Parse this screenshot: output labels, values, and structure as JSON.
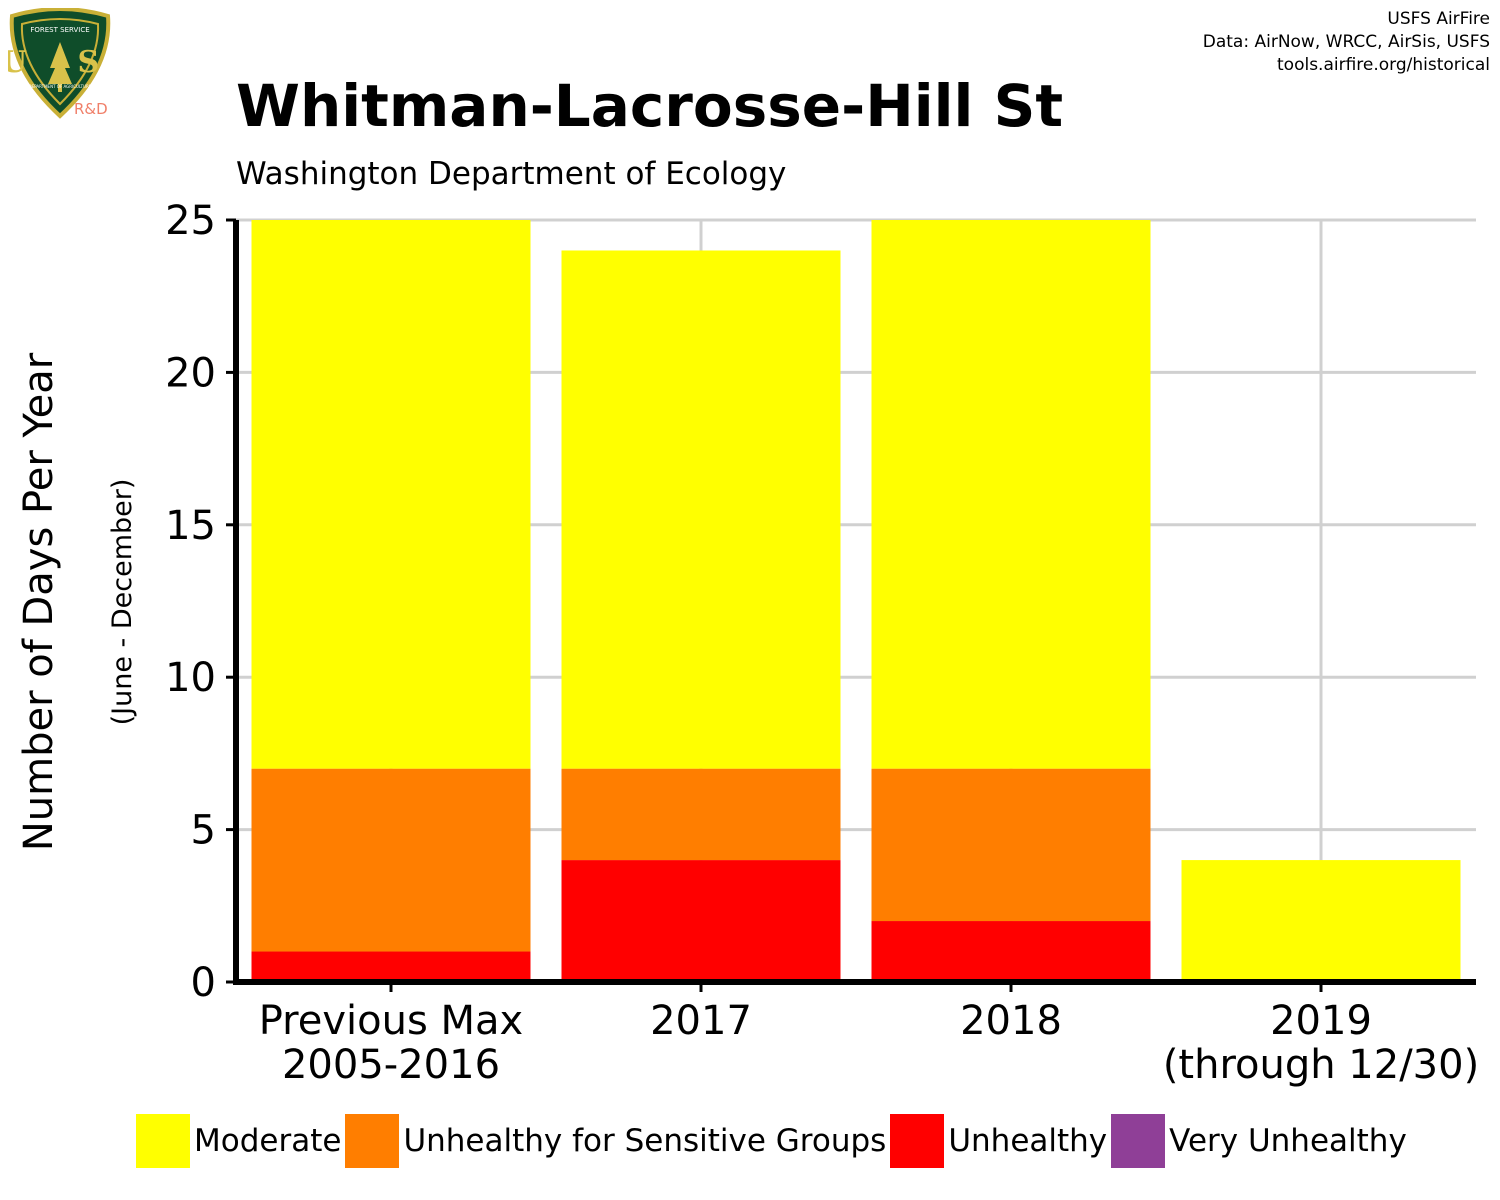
{
  "header": {
    "title": "Whitman-Lacrosse-Hill St",
    "subtitle": "Washington Department of Ecology",
    "logo": {
      "icon": "usfs-shield-logo-icon",
      "text_top": "FOREST SERVICE",
      "text_mid": "U S",
      "text_bottom": "DEPARTMENT OF AGRICULTURE",
      "tag": "R&D"
    }
  },
  "credits": [
    "USFS AirFire",
    "Data: AirNow, WRCC, AirSis, USFS",
    "tools.airfire.org/historical"
  ],
  "chart_data": {
    "type": "bar",
    "stacked": true,
    "categories": [
      [
        "Previous Max",
        "2005-2016"
      ],
      [
        "2017"
      ],
      [
        "2018"
      ],
      [
        "2019",
        "(through 12/30)"
      ]
    ],
    "series": [
      {
        "name": "Unhealthy",
        "color": "#ff0000",
        "values": [
          1,
          4,
          2,
          0
        ]
      },
      {
        "name": "Unhealthy for Sensitive Groups",
        "color": "#ff7e00",
        "values": [
          6,
          3,
          5,
          0
        ]
      },
      {
        "name": "Moderate",
        "color": "#ffff00",
        "values": [
          18,
          17,
          18,
          4
        ]
      }
    ],
    "ylabel": "Number of Days Per Year",
    "ylabel_sub": "(June - December)",
    "ylim": [
      0,
      25
    ],
    "yticks": [
      0,
      5,
      10,
      15,
      20,
      25
    ],
    "grid": true,
    "legend_position": "bottom"
  },
  "legend": [
    {
      "label": "Moderate",
      "color": "#ffff00"
    },
    {
      "label": "Unhealthy for Sensitive Groups",
      "color": "#ff7e00"
    },
    {
      "label": "Unhealthy",
      "color": "#ff0000"
    },
    {
      "label": "Very Unhealthy",
      "color": "#8f3f97"
    }
  ]
}
